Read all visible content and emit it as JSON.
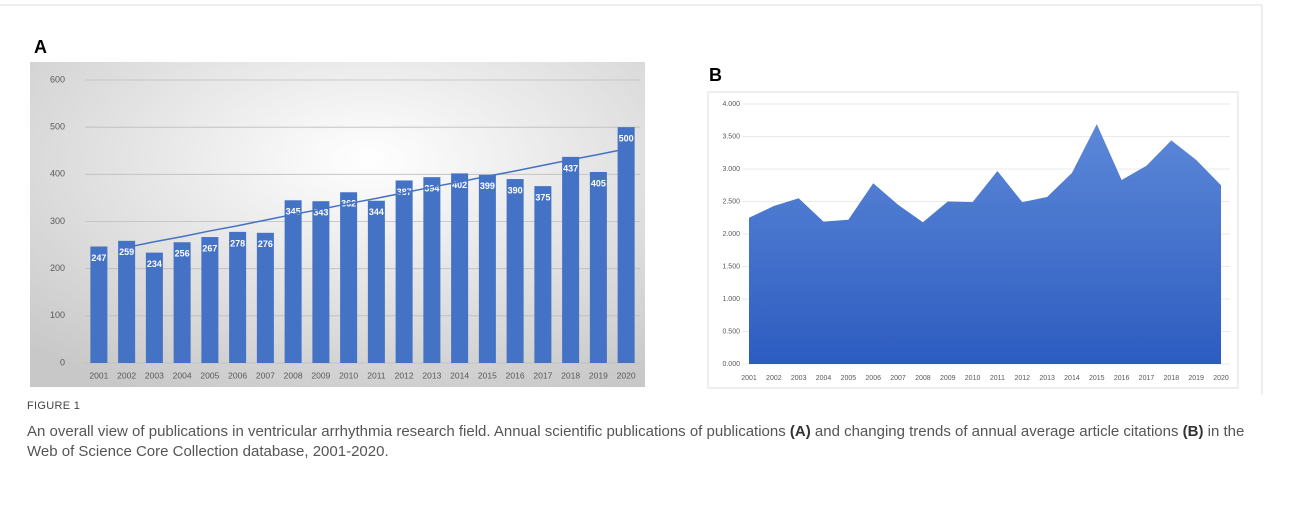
{
  "panels": [
    "A",
    "B"
  ],
  "figure": {
    "label": "FIGURE 1",
    "caption": [
      "An overall view of publications in ventricular arrhythmia research field. Annual scientific publications of publications ",
      "(A)",
      " and changing trends of annual average article citations ",
      "(B)",
      " in the Web of Science Core Collection database, 2001-2020."
    ]
  },
  "chart_data": [
    {
      "type": "bar",
      "color": "#4472c4",
      "categories": [
        "2001",
        "2002",
        "2003",
        "2004",
        "2005",
        "2006",
        "2007",
        "2008",
        "2009",
        "2010",
        "2011",
        "2012",
        "2013",
        "2014",
        "2015",
        "2016",
        "2017",
        "2018",
        "2019",
        "2020"
      ],
      "values": [
        247,
        259,
        234,
        256,
        267,
        278,
        276,
        345,
        343,
        362,
        344,
        387,
        394,
        402,
        399,
        390,
        375,
        437,
        405,
        500
      ],
      "trend": {
        "color": "#4472c4",
        "values": [
          null,
          245,
          257,
          268,
          280,
          291,
          303,
          315,
          326,
          338,
          349,
          361,
          373,
          384,
          396,
          407,
          419,
          431,
          442,
          454
        ]
      },
      "ylim": [
        0,
        600
      ],
      "yticks": [
        0,
        100,
        200,
        300,
        400,
        500,
        600
      ],
      "grid": true
    },
    {
      "type": "area",
      "color": "#3d6ccb",
      "categories": [
        "2001",
        "2002",
        "2003",
        "2004",
        "2005",
        "2006",
        "2007",
        "2008",
        "2009",
        "2010",
        "2011",
        "2012",
        "2013",
        "2014",
        "2015",
        "2016",
        "2017",
        "2018",
        "2019",
        "2020"
      ],
      "values": [
        2.25,
        2.43,
        2.55,
        2.19,
        2.22,
        2.78,
        2.45,
        2.18,
        2.5,
        2.49,
        2.97,
        2.49,
        2.57,
        2.94,
        3.69,
        2.83,
        3.05,
        3.44,
        3.14,
        2.75
      ],
      "ylim": [
        0,
        4
      ],
      "yticks": [
        {
          "value": 0,
          "label": "0.000"
        },
        {
          "value": 0.5,
          "label": "0.500"
        },
        {
          "value": 1,
          "label": "1.000"
        },
        {
          "value": 1.5,
          "label": "1.500"
        },
        {
          "value": 2,
          "label": "2.000"
        },
        {
          "value": 2.5,
          "label": "2.500"
        },
        {
          "value": 3,
          "label": "3.000"
        },
        {
          "value": 3.5,
          "label": "3.500"
        },
        {
          "value": 4,
          "label": "4.000"
        }
      ],
      "grid": true
    }
  ]
}
